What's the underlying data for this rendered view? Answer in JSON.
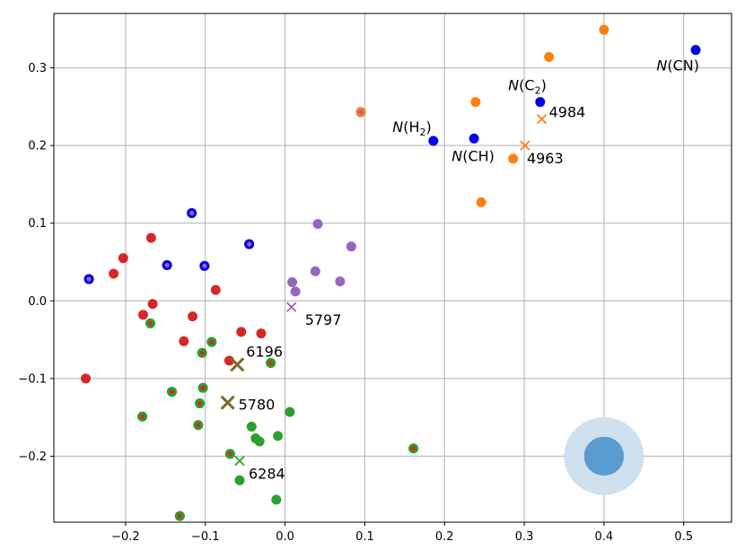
{
  "chart_data": {
    "type": "scatter",
    "title": "",
    "xlabel": "",
    "ylabel": "",
    "xlim": [
      -0.29,
      0.56
    ],
    "ylim": [
      -0.285,
      0.37
    ],
    "grid": true,
    "xticks": [
      -0.2,
      -0.1,
      0.0,
      0.1,
      0.2,
      0.3,
      0.4,
      0.5
    ],
    "yticks": [
      -0.2,
      -0.1,
      0.0,
      0.1,
      0.2,
      0.3
    ],
    "xtick_labels": [
      "−0.2",
      "−0.1",
      "0.0",
      "0.1",
      "0.2",
      "0.3",
      "0.4",
      "0.5"
    ],
    "ytick_labels": [
      "−0.2",
      "−0.1",
      "0.0",
      "0.1",
      "0.2",
      "0.3"
    ],
    "colors": {
      "red": "#d62728",
      "green": "#2ca02c",
      "purple": "#9467bd",
      "orange": "#ff7f0e",
      "blue": "#0000ee",
      "olive": "#7f6b2a",
      "ellipse_outer": "#cfe0ee",
      "ellipse_inner": "#5a9bd0"
    },
    "series": [
      {
        "name": "red",
        "marker": "dot",
        "points": [
          [
            -0.25,
            -0.1
          ],
          [
            -0.246,
            0.028
          ],
          [
            -0.215,
            0.035
          ],
          [
            -0.203,
            0.055
          ],
          [
            -0.178,
            -0.018
          ],
          [
            -0.168,
            0.081
          ],
          [
            -0.166,
            -0.004
          ],
          [
            -0.148,
            0.046
          ],
          [
            -0.127,
            -0.052
          ],
          [
            -0.117,
            0.113
          ],
          [
            -0.116,
            -0.02
          ],
          [
            -0.101,
            0.045
          ],
          [
            -0.087,
            0.014
          ],
          [
            -0.07,
            -0.077
          ],
          [
            -0.055,
            -0.04
          ],
          [
            -0.045,
            0.073
          ],
          [
            -0.03,
            -0.042
          ]
        ]
      },
      {
        "name": "green",
        "marker": "dot",
        "points": [
          [
            -0.179,
            -0.149
          ],
          [
            -0.169,
            -0.029
          ],
          [
            -0.142,
            -0.117
          ],
          [
            -0.132,
            -0.277
          ],
          [
            -0.109,
            -0.16
          ],
          [
            -0.107,
            -0.132
          ],
          [
            -0.104,
            -0.067
          ],
          [
            -0.103,
            -0.112
          ],
          [
            -0.092,
            -0.053
          ],
          [
            -0.069,
            -0.197
          ],
          [
            -0.057,
            -0.231
          ],
          [
            -0.042,
            -0.162
          ],
          [
            -0.037,
            -0.177
          ],
          [
            -0.032,
            -0.181
          ],
          [
            -0.018,
            -0.08
          ],
          [
            -0.011,
            -0.256
          ],
          [
            -0.009,
            -0.174
          ],
          [
            0.006,
            -0.143
          ],
          [
            0.161,
            -0.19
          ]
        ]
      },
      {
        "name": "purple",
        "marker": "dot",
        "points": [
          [
            0.009,
            0.024
          ],
          [
            0.013,
            0.012
          ],
          [
            0.038,
            0.038
          ],
          [
            0.041,
            0.099
          ],
          [
            0.069,
            0.025
          ],
          [
            0.083,
            0.07
          ]
        ]
      },
      {
        "name": "orange",
        "marker": "dot",
        "points": [
          [
            0.095,
            0.243
          ],
          [
            0.239,
            0.256
          ],
          [
            0.246,
            0.127
          ],
          [
            0.286,
            0.183
          ],
          [
            0.331,
            0.314
          ],
          [
            0.4,
            0.349
          ]
        ]
      },
      {
        "name": "blue",
        "marker": "dot",
        "points": [
          [
            0.186,
            0.206
          ],
          [
            0.237,
            0.209
          ],
          [
            0.32,
            0.256
          ],
          [
            0.515,
            0.323
          ]
        ]
      }
    ],
    "overlays": [
      {
        "outer": "blue",
        "inner": "purple",
        "points": [
          [
            -0.246,
            0.028
          ],
          [
            -0.117,
            0.113
          ],
          [
            -0.148,
            0.046
          ],
          [
            -0.101,
            0.045
          ],
          [
            -0.045,
            0.073
          ]
        ]
      },
      {
        "outer": "green",
        "inner": "red",
        "points": [
          [
            -0.179,
            -0.149
          ],
          [
            -0.169,
            -0.029
          ],
          [
            -0.142,
            -0.117
          ],
          [
            -0.132,
            -0.277
          ],
          [
            -0.109,
            -0.16
          ],
          [
            -0.107,
            -0.132
          ],
          [
            -0.104,
            -0.067
          ],
          [
            -0.103,
            -0.112
          ],
          [
            -0.092,
            -0.053
          ],
          [
            -0.069,
            -0.197
          ],
          [
            -0.018,
            -0.08
          ],
          [
            0.161,
            -0.19
          ]
        ]
      },
      {
        "outer": "orange",
        "inner": "purple",
        "points": [
          [
            0.095,
            0.243
          ]
        ]
      }
    ],
    "crosses": [
      {
        "label": "6196",
        "x": -0.06,
        "y": -0.082,
        "color": "olive",
        "size": "large"
      },
      {
        "label": "5780",
        "x": -0.072,
        "y": -0.131,
        "color": "olive",
        "size": "large"
      },
      {
        "label": "6284",
        "x": -0.057,
        "y": -0.206,
        "color": "green",
        "size": "small"
      },
      {
        "label": "5797",
        "x": 0.008,
        "y": -0.008,
        "color": "purple",
        "size": "small"
      },
      {
        "label": "4984",
        "x": 0.322,
        "y": 0.234,
        "color": "orange",
        "size": "small"
      },
      {
        "label": "4963",
        "x": 0.301,
        "y": 0.2,
        "color": "orange",
        "size": "small"
      }
    ],
    "point_labels": [
      {
        "text": "N(H",
        "sub": "2",
        "tail": ")",
        "x": 0.186,
        "y": 0.206
      },
      {
        "text": "N(CH)",
        "x": 0.237,
        "y": 0.209
      },
      {
        "text": "N(C",
        "sub": "2",
        "tail": ")",
        "x": 0.32,
        "y": 0.256
      },
      {
        "text": "N(CN)",
        "x": 0.515,
        "y": 0.323
      }
    ],
    "ellipse": {
      "center": [
        0.4,
        -0.2
      ],
      "outer_radius": [
        0.05,
        0.05
      ],
      "inner_radius": [
        0.025,
        0.025
      ]
    }
  }
}
